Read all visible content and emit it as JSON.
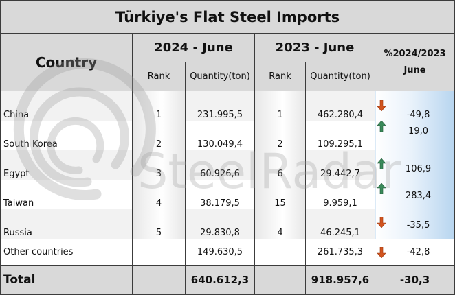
{
  "title": "Türkiye's Flat Steel Imports",
  "headers": {
    "country": "Country",
    "period_2024": "2024 - June",
    "period_2023": "2023 - June",
    "rank": "Rank",
    "quantity": "Quantity(ton)",
    "change_line1": "%2024/2023",
    "change_line2": "June"
  },
  "rows": [
    {
      "country": "China",
      "rank_2024": "1",
      "qty_2024": "231.995,5",
      "rank_2023": "1",
      "qty_2023": "462.280,4",
      "change": "-49,8",
      "trend": "down"
    },
    {
      "country": "South Korea",
      "rank_2024": "2",
      "qty_2024": "130.049,4",
      "rank_2023": "2",
      "qty_2023": "109.295,1",
      "change": "19,0",
      "trend": "up"
    },
    {
      "country": "Egypt",
      "rank_2024": "3",
      "qty_2024": "60.926,6",
      "rank_2023": "6",
      "qty_2023": "29.442,7",
      "change": "106,9",
      "trend": "up"
    },
    {
      "country": "Taiwan",
      "rank_2024": "4",
      "qty_2024": "38.179,5",
      "rank_2023": "15",
      "qty_2023": "9.959,1",
      "change": "283,4",
      "trend": "up"
    },
    {
      "country": "Russia",
      "rank_2024": "5",
      "qty_2024": "29.830,8",
      "rank_2023": "4",
      "qty_2023": "46.245,1",
      "change": "-35,5",
      "trend": "down"
    }
  ],
  "other": {
    "country": "Other countries",
    "qty_2024": "149.630,5",
    "qty_2023": "261.735,3",
    "change": "-42,8",
    "trend": "down"
  },
  "total": {
    "label": "Total",
    "qty_2024": "640.612,3",
    "qty_2023": "918.957,6",
    "change": "-30,3"
  },
  "watermark": "SteelRadar",
  "colors": {
    "header_bg": "#d9d9d9",
    "arrow_up": "#3a8a5a",
    "arrow_down": "#d2541f",
    "change_gradient_end": "#b7d5ef"
  },
  "icons": {
    "up": "arrow-up-icon",
    "down": "arrow-down-icon"
  }
}
